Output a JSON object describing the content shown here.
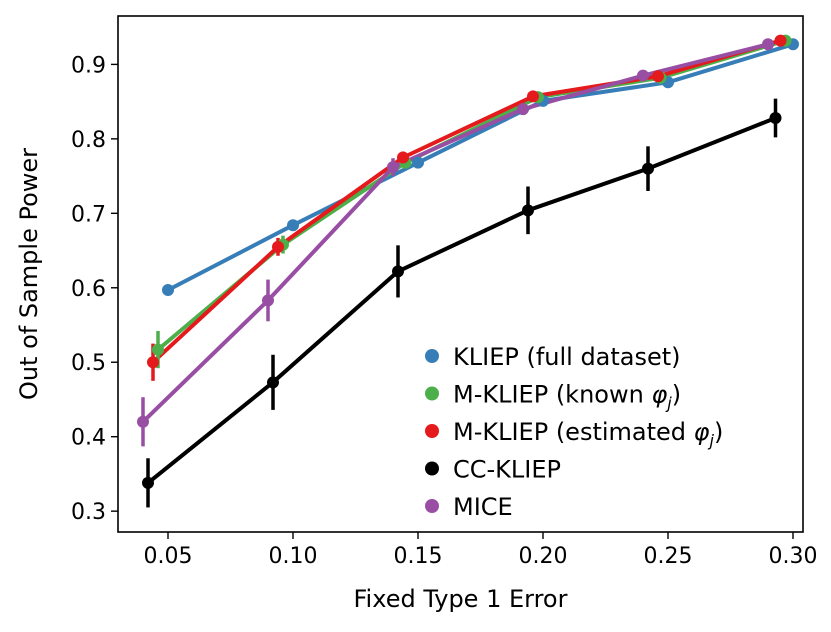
{
  "chart_data": {
    "type": "line",
    "title": "",
    "xlabel": "Fixed Type 1 Error",
    "ylabel": "Out of Sample Power",
    "xlim": [
      0.03,
      0.304
    ],
    "ylim": [
      0.272,
      0.965
    ],
    "xticks": [
      0.05,
      0.1,
      0.15,
      0.2,
      0.25,
      0.3
    ],
    "xtick_labels": [
      "0.05",
      "0.10",
      "0.15",
      "0.20",
      "0.25",
      "0.30"
    ],
    "yticks": [
      0.3,
      0.4,
      0.5,
      0.6,
      0.7,
      0.8,
      0.9
    ],
    "ytick_labels": [
      "0.3",
      "0.4",
      "0.5",
      "0.6",
      "0.7",
      "0.8",
      "0.9"
    ],
    "grid": false,
    "legend_position": "lower-right",
    "series": [
      {
        "name": "KLIEP (full dataset)",
        "legend_text": "KLIEP (full dataset)",
        "color": "#377eb8",
        "x": [
          0.05,
          0.1,
          0.15,
          0.2,
          0.25,
          0.3
        ],
        "y": [
          0.597,
          0.684,
          0.768,
          0.851,
          0.876,
          0.927
        ],
        "err": [
          0,
          0,
          0,
          0,
          0,
          0
        ]
      },
      {
        "name": "M-KLIEP (known phi_j)",
        "legend_text": "M-KLIEP (known ",
        "legend_symbol": "φ",
        "legend_sub": "j",
        "legend_suffix": ")",
        "color": "#4daf4a",
        "x": [
          0.046,
          0.096,
          0.145,
          0.198,
          0.247,
          0.297
        ],
        "y": [
          0.517,
          0.658,
          0.768,
          0.856,
          0.882,
          0.932
        ],
        "err": [
          0.025,
          0.012,
          0.008,
          0.005,
          0.004,
          0.003
        ]
      },
      {
        "name": "M-KLIEP (estimated phi_j)",
        "legend_text": "M-KLIEP (estimated ",
        "legend_symbol": "φ",
        "legend_sub": "j",
        "legend_suffix": ")",
        "color": "#e41a1c",
        "x": [
          0.044,
          0.094,
          0.144,
          0.196,
          0.246,
          0.295
        ],
        "y": [
          0.5,
          0.655,
          0.775,
          0.857,
          0.884,
          0.932
        ],
        "err": [
          0.025,
          0.012,
          0.008,
          0.005,
          0.004,
          0.003
        ]
      },
      {
        "name": "CC-KLIEP",
        "legend_text": "CC-KLIEP",
        "color": "#000000",
        "x": [
          0.042,
          0.092,
          0.142,
          0.194,
          0.242,
          0.293
        ],
        "y": [
          0.338,
          0.473,
          0.622,
          0.704,
          0.76,
          0.828
        ],
        "err": [
          0.033,
          0.037,
          0.035,
          0.032,
          0.03,
          0.026
        ]
      },
      {
        "name": "MICE",
        "legend_text": "MICE",
        "color": "#984ea3",
        "x": [
          0.04,
          0.09,
          0.14,
          0.192,
          0.24,
          0.29
        ],
        "y": [
          0.42,
          0.583,
          0.762,
          0.84,
          0.885,
          0.927
        ],
        "err": [
          0.033,
          0.028,
          0.012,
          0.008,
          0.005,
          0.004
        ]
      }
    ]
  }
}
